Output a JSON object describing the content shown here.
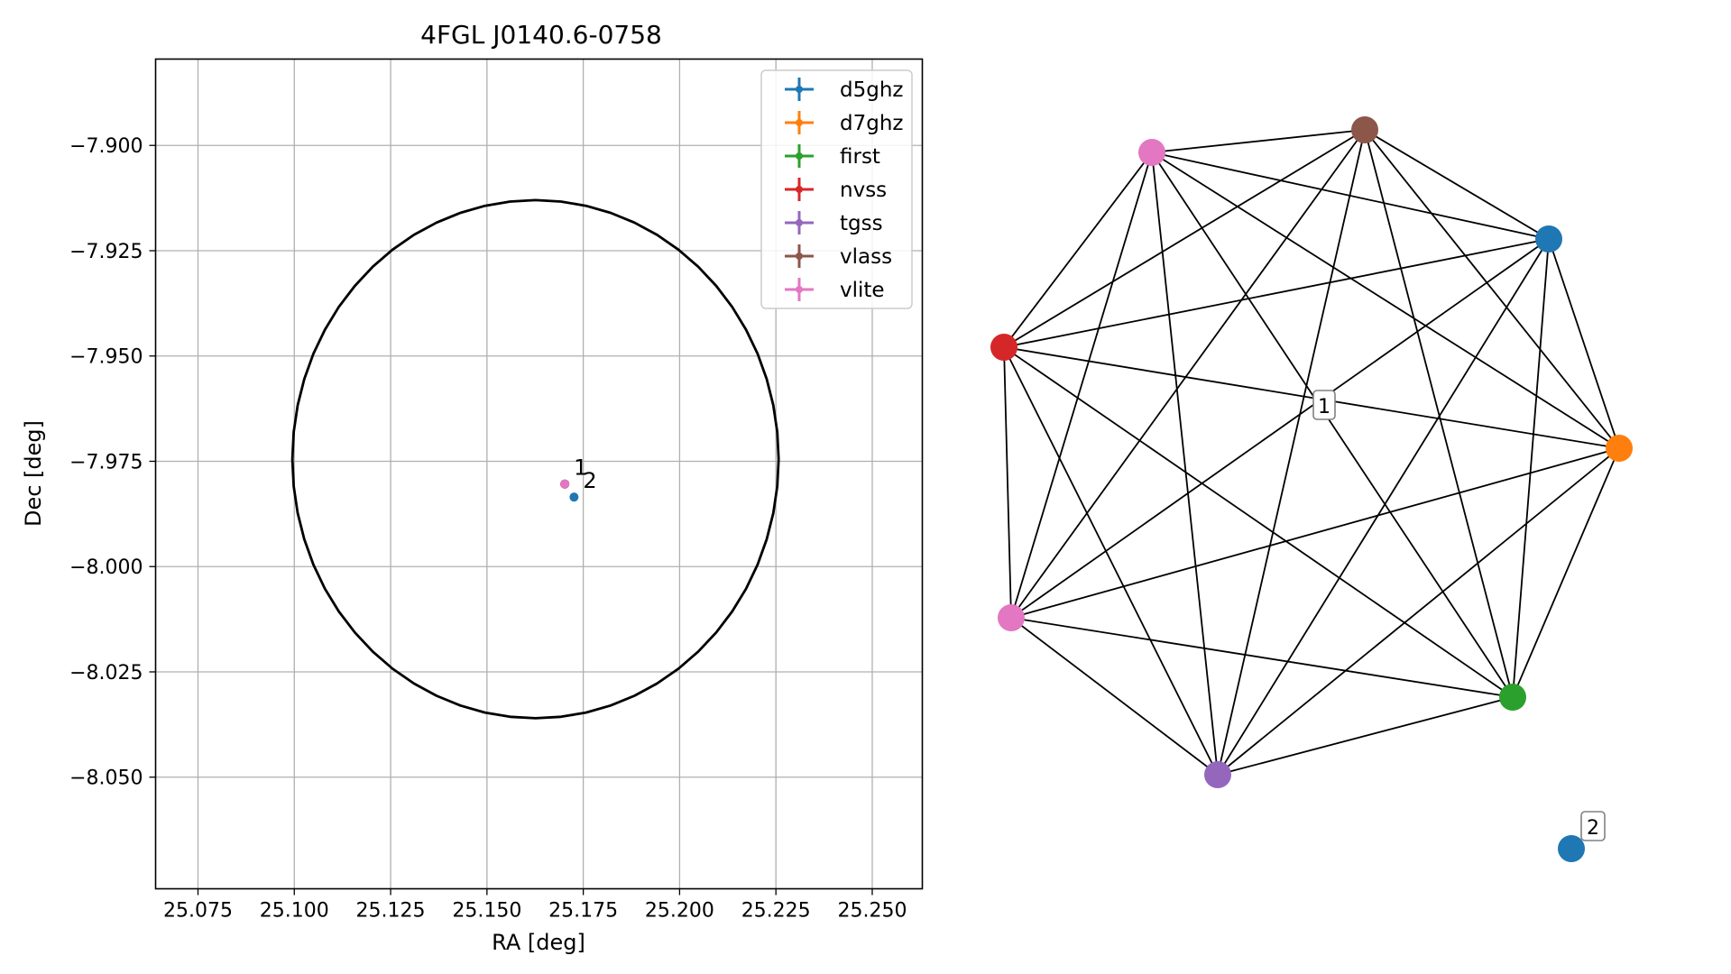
{
  "chart_data": [
    {
      "type": "scatter",
      "title": "4FGL J0140.6-0758",
      "xlabel": "RA [deg]",
      "ylabel": "Dec [deg]",
      "xlim": [
        25.064,
        25.263
      ],
      "ylim": [
        -8.0765,
        -7.8795
      ],
      "grid": true,
      "legend_position": "top-right",
      "x_ticks": [
        25.075,
        25.1,
        25.125,
        25.15,
        25.175,
        25.2,
        25.225,
        25.25
      ],
      "x_tick_labels": [
        "25.075",
        "25.100",
        "25.125",
        "25.150",
        "25.175",
        "25.200",
        "25.225",
        "25.250"
      ],
      "y_ticks": [
        -7.9,
        -7.925,
        -7.95,
        -7.975,
        -8.0,
        -8.025,
        -8.05
      ],
      "y_tick_labels": [
        "−7.900",
        "−7.925",
        "−7.950",
        "−7.975",
        "−8.000",
        "−8.025",
        "−8.050"
      ],
      "ellipse": {
        "center_ra": 25.1626,
        "center_dec": -7.9745,
        "semi_ra": 0.0631,
        "semi_dec": 0.0615
      },
      "series": [
        {
          "name": "d5ghz",
          "color": "#1f77b4",
          "points": [
            [
              25.1702,
              -7.9804
            ],
            [
              25.1726,
              -7.9835
            ]
          ]
        },
        {
          "name": "d7ghz",
          "color": "#ff7f0e",
          "points": [
            [
              25.1702,
              -7.9804
            ]
          ]
        },
        {
          "name": "first",
          "color": "#2ca02c",
          "points": [
            [
              25.1702,
              -7.9804
            ]
          ]
        },
        {
          "name": "nvss",
          "color": "#d62728",
          "points": [
            [
              25.1702,
              -7.9804
            ]
          ]
        },
        {
          "name": "tgss",
          "color": "#9467bd",
          "points": [
            [
              25.1702,
              -7.9804
            ]
          ]
        },
        {
          "name": "vlass",
          "color": "#8c564b",
          "points": [
            [
              25.1702,
              -7.9804
            ]
          ]
        },
        {
          "name": "vlite",
          "color": "#e377c2",
          "points": [
            [
              25.1702,
              -7.9804
            ]
          ]
        }
      ],
      "annotations": [
        {
          "text": "1",
          "ra": 25.1702,
          "dec": -7.9804
        },
        {
          "text": "2",
          "ra": 25.1726,
          "dec": -7.9835
        }
      ]
    },
    {
      "type": "network",
      "groups": [
        {
          "label": "1",
          "nodes": [
            "d5ghz",
            "d7ghz",
            "first",
            "tgss",
            "vlite",
            "nvss",
            "vlite",
            "vlass"
          ]
        },
        {
          "label": "2",
          "nodes": [
            "d5ghz"
          ]
        }
      ]
    }
  ]
}
